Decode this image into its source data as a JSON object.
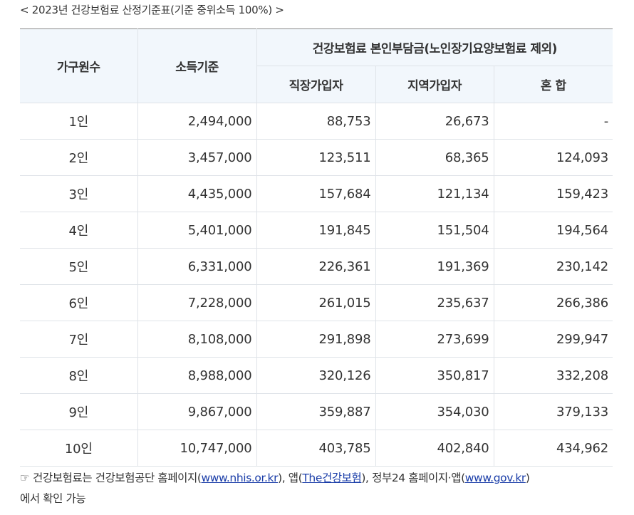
{
  "caption": "< 2023년 건강보험료 산정기준표(기준 중위소득 100%) >",
  "table": {
    "headers": {
      "household": "가구원수",
      "income": "소득기준",
      "premium_group": "건강보험료 본인부담금(노인장기요양보험료 제외)",
      "workplace": "직장가입자",
      "regional": "지역가입자",
      "mixed": "혼 합"
    },
    "rows": [
      {
        "household": "1인",
        "income": "2,494,000",
        "workplace": "88,753",
        "regional": "26,673",
        "mixed": "-"
      },
      {
        "household": "2인",
        "income": "3,457,000",
        "workplace": "123,511",
        "regional": "68,365",
        "mixed": "124,093"
      },
      {
        "household": "3인",
        "income": "4,435,000",
        "workplace": "157,684",
        "regional": "121,134",
        "mixed": "159,423"
      },
      {
        "household": "4인",
        "income": "5,401,000",
        "workplace": "191,845",
        "regional": "151,504",
        "mixed": "194,564"
      },
      {
        "household": "5인",
        "income": "6,331,000",
        "workplace": "226,361",
        "regional": "191,369",
        "mixed": "230,142"
      },
      {
        "household": "6인",
        "income": "7,228,000",
        "workplace": "261,015",
        "regional": "235,637",
        "mixed": "266,386"
      },
      {
        "household": "7인",
        "income": "8,108,000",
        "workplace": "291,898",
        "regional": "273,699",
        "mixed": "299,947"
      },
      {
        "household": "8인",
        "income": "8,988,000",
        "workplace": "320,126",
        "regional": "350,817",
        "mixed": "332,208"
      },
      {
        "household": "9인",
        "income": "9,867,000",
        "workplace": "359,887",
        "regional": "354,030",
        "mixed": "379,133"
      },
      {
        "household": "10인",
        "income": "10,747,000",
        "workplace": "403,785",
        "regional": "402,840",
        "mixed": "434,962"
      }
    ]
  },
  "footnote": {
    "lead": "☞ 건강보험료는 건강보험공단 홈페이지(",
    "link1": "www.nhis.or.kr",
    "mid1": "), 앱(",
    "link2": "The건강보험",
    "mid2": "), 정부24 홈페이지·앱(",
    "link3": "www.gov.kr",
    "tail": ")",
    "line2": "에서 확인 가능"
  }
}
